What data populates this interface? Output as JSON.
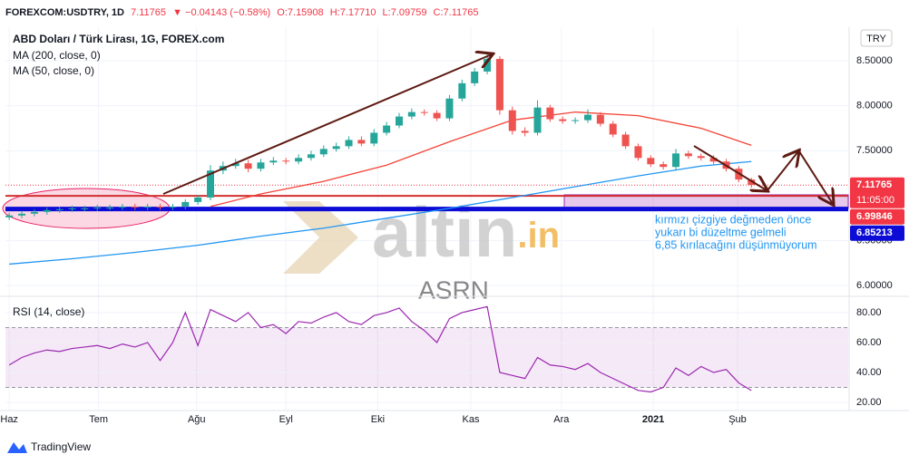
{
  "header": {
    "symbol": "FOREXCOM:USDTRY, 1D",
    "price": "7.11765",
    "change": "▼ −0.04143 (−0.58%)",
    "o": "O:7.15908",
    "h": "H:7.17710",
    "l": "L:7.09759",
    "c": "C:7.11765"
  },
  "chart_data": {
    "type": "candlestick",
    "title": "ABD Doları / Türk Lirası, 1G, FOREX.com",
    "currency": "TRY",
    "xlim": [
      -0.3,
      66.7
    ],
    "xticks": [
      {
        "value": 0,
        "label": "Haz"
      },
      {
        "value": 7.1,
        "label": "Tem"
      },
      {
        "value": 14.9,
        "label": "Ağu"
      },
      {
        "value": 22,
        "label": "Eyl"
      },
      {
        "value": 29.3,
        "label": "Eki"
      },
      {
        "value": 36.7,
        "label": "Kas"
      },
      {
        "value": 43.9,
        "label": "Ara"
      },
      {
        "value": 51.2,
        "label": "2021"
      },
      {
        "value": 57.9,
        "label": "Şub"
      }
    ],
    "ylim": [
      5.902,
      8.873
    ],
    "yticks": [
      {
        "value": 6,
        "label": "6.00000"
      },
      {
        "value": 6.5,
        "label": "6.50000"
      },
      {
        "value": 7,
        "label": "7.00000"
      },
      {
        "value": 7.5,
        "label": "7.50000"
      },
      {
        "value": 8,
        "label": "8.00000"
      },
      {
        "value": 8.5,
        "label": "8.50000"
      }
    ],
    "up_color": "#26a69a",
    "down_color": "#ef5350",
    "open": [
      6.76,
      6.78,
      6.8,
      6.82,
      6.84,
      6.85,
      6.86,
      6.86,
      6.87,
      6.87,
      6.88,
      6.87,
      6.88,
      6.87,
      6.88,
      6.93,
      6.98,
      7.28,
      7.33,
      7.36,
      7.3,
      7.37,
      7.39,
      7.38,
      7.42,
      7.46,
      7.52,
      7.55,
      7.62,
      7.58,
      7.7,
      7.78,
      7.88,
      7.93,
      7.92,
      7.86,
      8.08,
      8.25,
      8.38,
      8.52,
      7.95,
      7.72,
      7.7,
      7.98,
      7.85,
      7.83,
      7.84,
      7.9,
      7.8,
      7.68,
      7.55,
      7.42,
      7.35,
      7.32,
      7.47,
      7.44,
      7.42,
      7.38,
      7.3,
      7.18
    ],
    "high": [
      6.81,
      6.83,
      6.85,
      6.87,
      6.88,
      6.89,
      6.89,
      6.9,
      6.9,
      6.91,
      6.91,
      6.91,
      6.91,
      6.91,
      6.96,
      7.01,
      7.34,
      7.38,
      7.41,
      7.4,
      7.41,
      7.43,
      7.42,
      7.46,
      7.5,
      7.56,
      7.59,
      7.66,
      7.66,
      7.74,
      7.82,
      7.92,
      7.97,
      7.96,
      7.95,
      8.12,
      8.29,
      8.42,
      8.58,
      8.55,
      7.99,
      7.76,
      8.06,
      8.01,
      7.88,
      7.87,
      7.96,
      7.93,
      7.83,
      7.71,
      7.58,
      7.45,
      7.38,
      7.52,
      7.5,
      7.47,
      7.45,
      7.41,
      7.33,
      7.2
    ],
    "low": [
      6.73,
      6.75,
      6.77,
      6.79,
      6.81,
      6.82,
      6.83,
      6.83,
      6.84,
      6.84,
      6.84,
      6.84,
      6.84,
      6.84,
      6.85,
      6.9,
      6.95,
      7.24,
      7.3,
      7.26,
      7.27,
      7.34,
      7.35,
      7.35,
      7.39,
      7.43,
      7.49,
      7.52,
      7.55,
      7.55,
      7.67,
      7.75,
      7.85,
      7.89,
      7.83,
      7.83,
      8.05,
      8.22,
      8.35,
      7.9,
      7.68,
      7.66,
      7.67,
      7.82,
      7.8,
      7.8,
      7.81,
      7.77,
      7.65,
      7.52,
      7.39,
      7.32,
      7.29,
      7.28,
      7.41,
      7.39,
      7.35,
      7.27,
      7.15,
      7.09
    ],
    "close": [
      6.78,
      6.8,
      6.82,
      6.84,
      6.85,
      6.86,
      6.86,
      6.87,
      6.87,
      6.88,
      6.87,
      6.88,
      6.87,
      6.88,
      6.93,
      6.98,
      7.28,
      7.33,
      7.36,
      7.3,
      7.37,
      7.39,
      7.38,
      7.42,
      7.46,
      7.52,
      7.55,
      7.62,
      7.58,
      7.7,
      7.78,
      7.88,
      7.93,
      7.92,
      7.86,
      8.08,
      8.25,
      8.38,
      8.52,
      7.95,
      7.72,
      7.7,
      7.98,
      7.85,
      7.83,
      7.84,
      7.9,
      7.8,
      7.68,
      7.55,
      7.42,
      7.35,
      7.32,
      7.47,
      7.44,
      7.42,
      7.38,
      7.3,
      7.18,
      7.12
    ],
    "series": [
      {
        "name": "MA (200, close, 0)",
        "color": "#2196f3",
        "x": [
          0,
          5,
          10,
          15,
          20,
          25,
          30,
          35,
          40,
          45,
          50,
          55,
          59
        ],
        "values": [
          6.24,
          6.3,
          6.37,
          6.45,
          6.55,
          6.64,
          6.75,
          6.86,
          6.98,
          7.1,
          7.22,
          7.33,
          7.38
        ]
      },
      {
        "name": "MA (50, close, 0)",
        "color": "#f44336",
        "x": [
          16,
          20,
          25,
          30,
          35,
          40,
          45,
          50,
          55,
          59
        ],
        "values": [
          6.88,
          7.02,
          7.16,
          7.34,
          7.6,
          7.84,
          7.93,
          7.89,
          7.75,
          7.56
        ]
      }
    ],
    "price_labels": [
      {
        "value": 7.11765,
        "label": "7.11765",
        "countdown": "11:05:00",
        "color": "#f23645",
        "line": "dotted"
      },
      {
        "value": 6.99846,
        "label": "6.99846",
        "color": "#f23645",
        "line": "solid"
      },
      {
        "value": 6.85213,
        "label": "6.85213",
        "color": "#0c0cd6",
        "line": "thick"
      }
    ],
    "rsi": {
      "name": "RSI (14, close)",
      "color": "#9c27b0",
      "ylim": [
        15.2,
        86
      ],
      "yticks": [
        {
          "value": 20,
          "label": "20.00"
        },
        {
          "value": 40,
          "label": "40.00"
        },
        {
          "value": 60,
          "label": "60.00"
        },
        {
          "value": 80,
          "label": "80.00"
        }
      ],
      "band": [
        30,
        70
      ],
      "values": [
        45,
        50,
        53,
        55,
        54,
        56,
        57,
        58,
        56,
        59,
        57,
        60,
        48,
        60,
        80,
        58,
        82,
        78,
        74,
        80,
        70,
        72,
        66,
        74,
        73,
        77,
        80,
        74,
        72,
        78,
        80,
        83,
        74,
        68,
        60,
        76,
        80,
        82,
        84,
        40,
        38,
        36,
        50,
        45,
        44,
        42,
        46,
        40,
        36,
        32,
        28,
        27,
        30,
        43,
        38,
        44,
        40,
        42,
        33,
        28
      ]
    }
  },
  "annotation": [
    "kırmızı çizgiye değmeden önce",
    "yukarı bi düzeltme gelmeli",
    "6,85 kırılacağını düşünmüyorum"
  ],
  "watermark": "altin",
  "watermark_suffix": ".in",
  "author": "ASRN",
  "logo": "TradingView"
}
